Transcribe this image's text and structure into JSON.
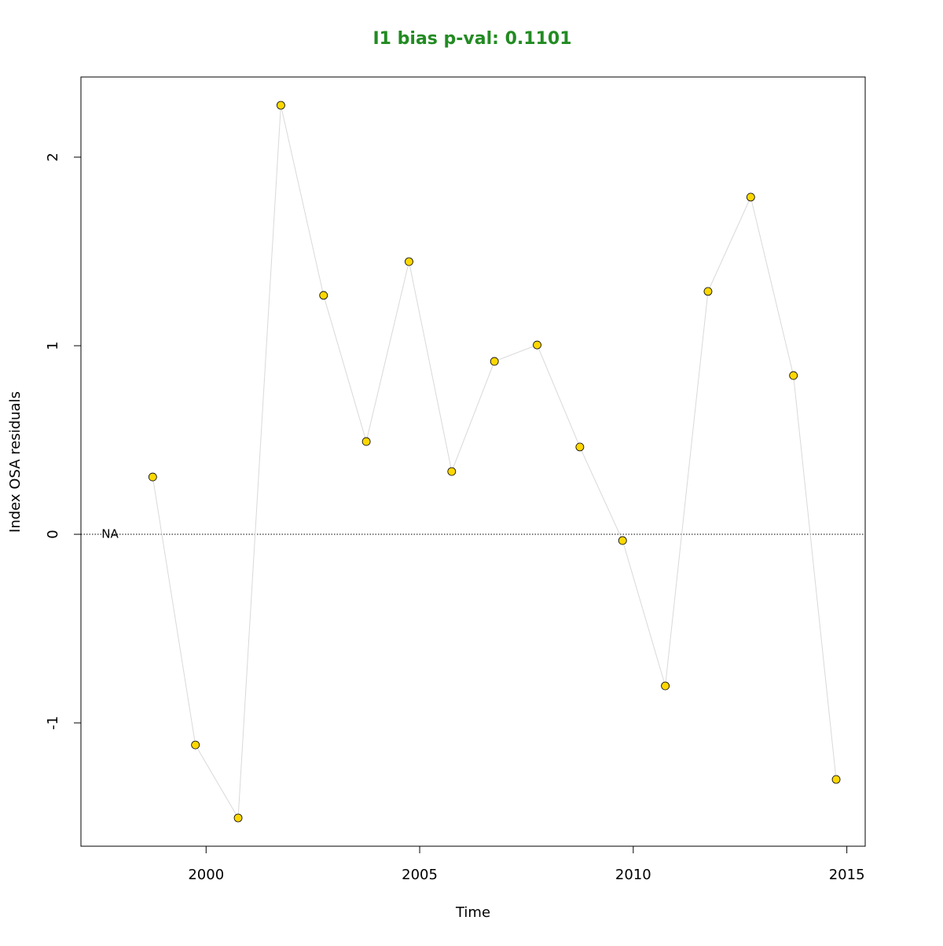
{
  "chart_data": {
    "type": "line",
    "title": "I1 bias p-val: 0.1101",
    "title_color": "#228B22",
    "x_label": "Time",
    "y_label": "Index OSA residuals",
    "x": [
      1997.75,
      1998.75,
      1999.75,
      2000.75,
      2001.75,
      2002.75,
      2003.75,
      2004.75,
      2005.75,
      2006.75,
      2007.75,
      2008.75,
      2009.75,
      2010.75,
      2011.75,
      2012.75,
      2013.75,
      2014.75
    ],
    "series": [
      {
        "name": "I1",
        "color": "#d9d9d9",
        "marker_color": "#FFD700",
        "values": [
          null,
          0.304,
          -1.117,
          -1.504,
          2.275,
          1.267,
          0.492,
          1.446,
          0.333,
          0.917,
          1.004,
          0.463,
          -0.033,
          -0.804,
          1.288,
          1.788,
          0.842,
          -1.3
        ]
      }
    ],
    "na_label": "NA",
    "hline": 0,
    "xlim": [
      1997.07,
      2015.43
    ],
    "xticks": [
      2000,
      2005,
      2010,
      2015
    ],
    "ylim": [
      -1.654,
      2.425
    ],
    "yticks": [
      -1,
      0,
      1,
      2
    ]
  }
}
